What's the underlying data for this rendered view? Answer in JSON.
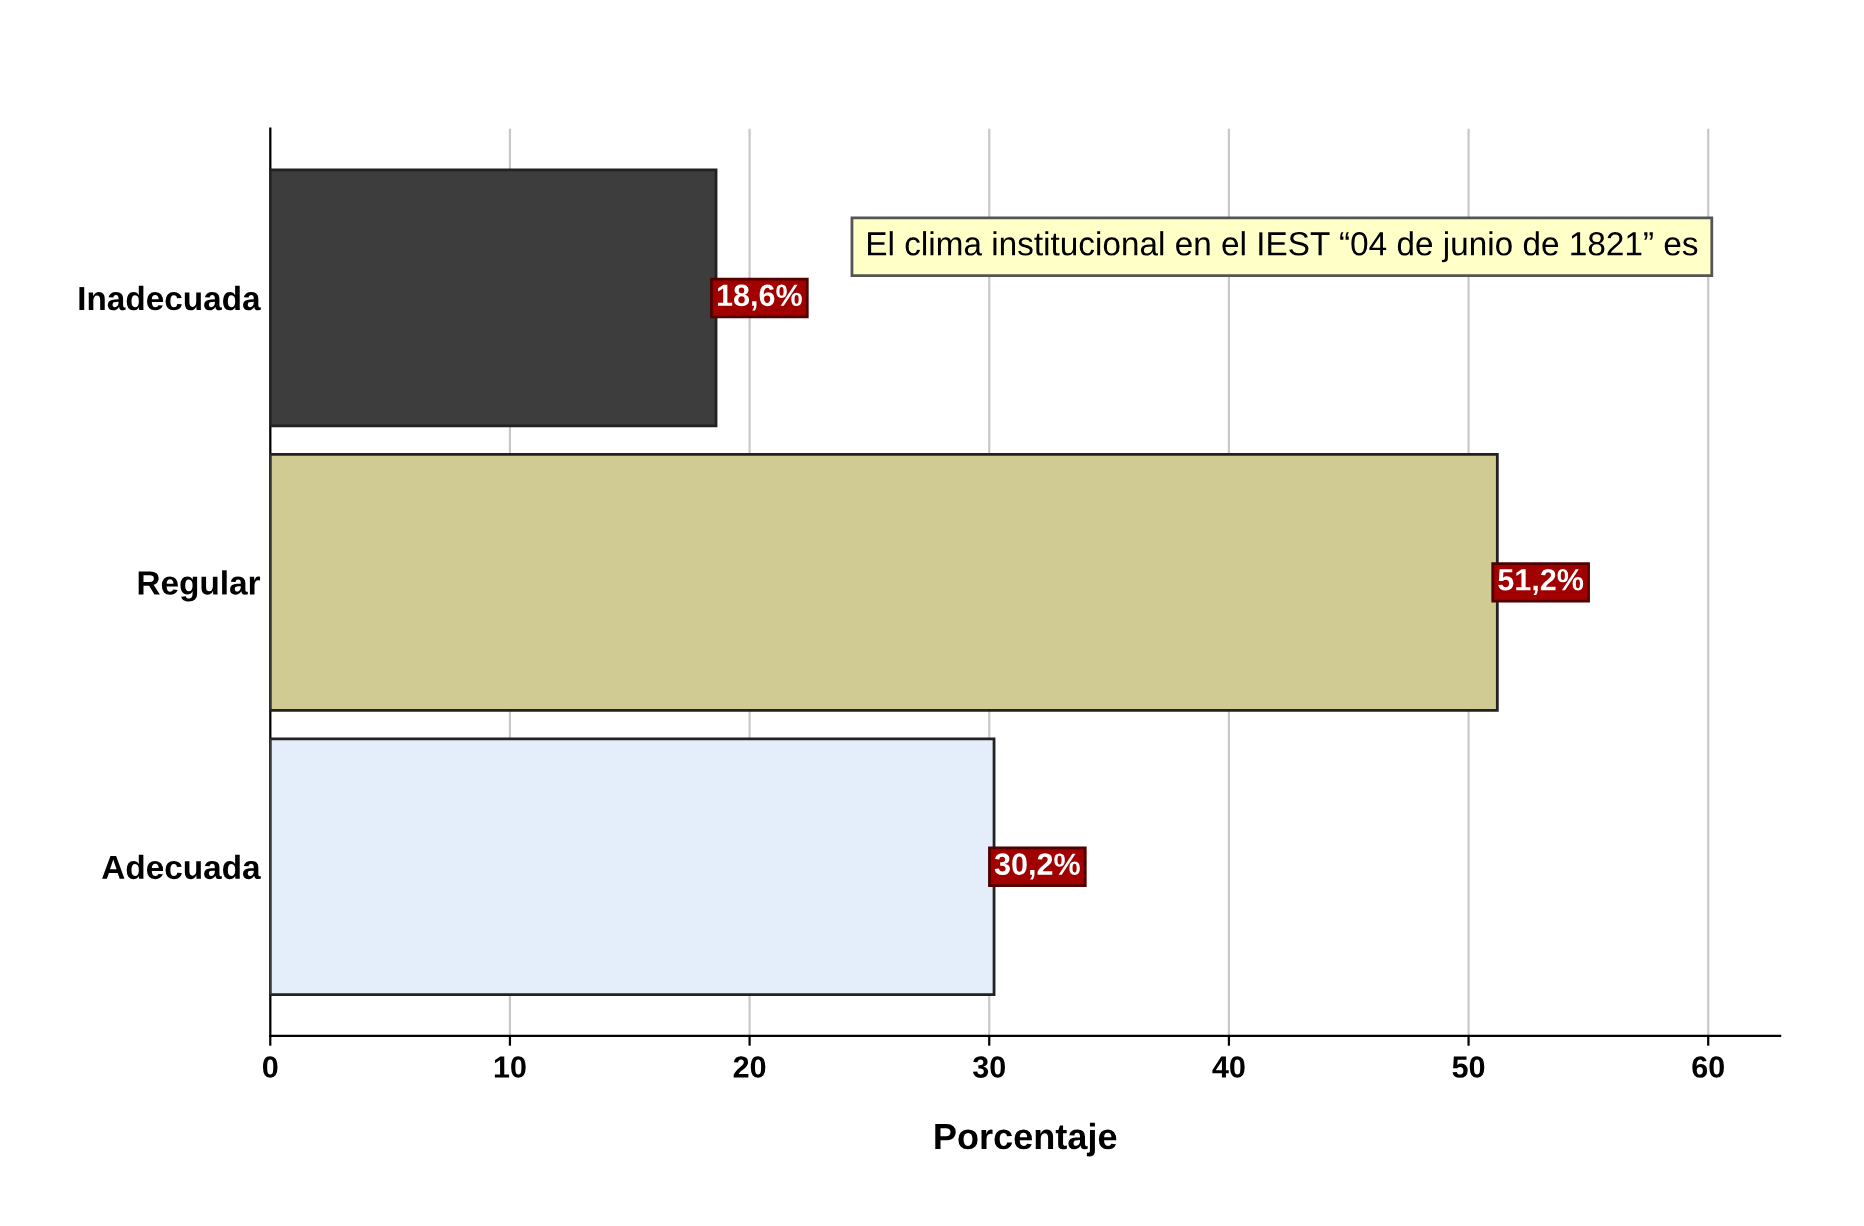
{
  "chart_data": {
    "type": "bar",
    "orientation": "horizontal",
    "xlabel": "Porcentaje",
    "categories": [
      "Inadecuada",
      "Regular",
      "Adecuada"
    ],
    "values": [
      18.6,
      51.2,
      30.2
    ],
    "colors": [
      "#3d3d3d",
      "#cfcb93",
      "#e3eefa"
    ],
    "value_labels": [
      "18,6%",
      "51,2%",
      "30,2%"
    ],
    "xlim": [
      0,
      63
    ],
    "xticks": [
      0,
      10,
      20,
      30,
      40,
      50,
      60
    ],
    "grid": "x",
    "annotations": [
      "El clima institucional en el IEST “04 de junio de 1821” es"
    ]
  }
}
